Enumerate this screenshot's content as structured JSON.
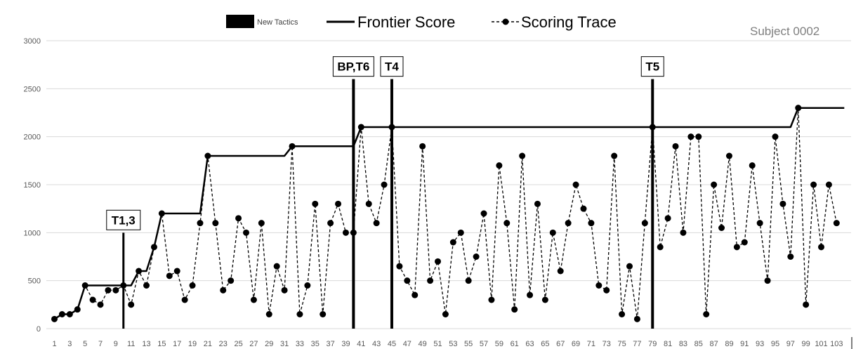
{
  "chart_data": {
    "type": "line",
    "subject_label": "Subject 0002",
    "legend": {
      "tactics_label": "New Tactics",
      "frontier_label": "Frontier Score",
      "trace_label": "Scoring Trace"
    },
    "ylim": [
      0,
      3000
    ],
    "yticks": [
      0,
      500,
      1000,
      1500,
      2000,
      2500,
      3000
    ],
    "xlim": [
      1,
      104
    ],
    "xticks": [
      1,
      3,
      5,
      7,
      9,
      11,
      13,
      15,
      17,
      19,
      21,
      23,
      25,
      27,
      29,
      31,
      33,
      35,
      37,
      39,
      41,
      43,
      45,
      47,
      49,
      51,
      53,
      55,
      57,
      59,
      61,
      63,
      65,
      67,
      69,
      71,
      73,
      75,
      77,
      79,
      81,
      83,
      85,
      87,
      89,
      91,
      93,
      95,
      97,
      99,
      101,
      103
    ],
    "tactics": [
      {
        "label": "T1,3",
        "x": 10,
        "top": 1000
      },
      {
        "label": "BP,T6",
        "x": 40,
        "top": 2600
      },
      {
        "label": "T4",
        "x": 45,
        "top": 2600
      },
      {
        "label": "T5",
        "x": 79,
        "top": 2600
      }
    ],
    "series": [
      {
        "name": "Scoring Trace",
        "x": [
          1,
          2,
          3,
          4,
          5,
          6,
          7,
          8,
          9,
          10,
          11,
          12,
          13,
          14,
          15,
          16,
          17,
          18,
          19,
          20,
          21,
          22,
          23,
          24,
          25,
          26,
          27,
          28,
          29,
          30,
          31,
          32,
          33,
          34,
          35,
          36,
          37,
          38,
          39,
          40,
          41,
          42,
          43,
          44,
          45,
          46,
          47,
          48,
          49,
          50,
          51,
          52,
          53,
          54,
          55,
          56,
          57,
          58,
          59,
          60,
          61,
          62,
          63,
          64,
          65,
          66,
          67,
          68,
          69,
          70,
          71,
          72,
          73,
          74,
          75,
          76,
          77,
          78,
          79,
          80,
          81,
          82,
          83,
          84,
          85,
          86,
          87,
          88,
          89,
          90,
          91,
          92,
          93,
          94,
          95,
          96,
          97,
          98,
          99,
          100,
          101,
          102,
          103,
          104
        ],
        "values": [
          100,
          150,
          150,
          200,
          450,
          300,
          250,
          400,
          400,
          450,
          250,
          600,
          450,
          850,
          1200,
          550,
          600,
          300,
          450,
          1100,
          1800,
          1100,
          400,
          500,
          1150,
          1000,
          300,
          1100,
          150,
          650,
          400,
          1900,
          150,
          450,
          1300,
          150,
          1100,
          1300,
          1000,
          1000,
          2100,
          1300,
          1100,
          1500,
          2100,
          650,
          500,
          350,
          1900,
          500,
          700,
          150,
          900,
          1000,
          500,
          750,
          1200,
          300,
          1700,
          1100,
          200,
          1800,
          350,
          1300,
          300,
          1000,
          600,
          1100,
          1500,
          1250,
          1100,
          450,
          400,
          1800,
          150,
          650,
          100,
          1100,
          2100,
          850,
          1150,
          1900,
          1000,
          2000,
          2000,
          150,
          1500,
          1050,
          1800,
          850,
          900,
          1700,
          1100,
          500,
          2000,
          1300,
          750,
          2300,
          250,
          1500,
          850,
          1500,
          1100,
          null
        ]
      },
      {
        "name": "Frontier Score",
        "x": [
          1,
          2,
          3,
          4,
          5,
          6,
          7,
          8,
          9,
          10,
          11,
          12,
          13,
          14,
          15,
          16,
          17,
          18,
          19,
          20,
          21,
          22,
          23,
          24,
          25,
          26,
          27,
          28,
          29,
          30,
          31,
          32,
          33,
          34,
          35,
          36,
          37,
          38,
          39,
          40,
          41,
          42,
          43,
          44,
          45,
          46,
          47,
          48,
          49,
          50,
          51,
          52,
          53,
          54,
          55,
          56,
          57,
          58,
          59,
          60,
          61,
          62,
          63,
          64,
          65,
          66,
          67,
          68,
          69,
          70,
          71,
          72,
          73,
          74,
          75,
          76,
          77,
          78,
          79,
          80,
          81,
          82,
          83,
          84,
          85,
          86,
          87,
          88,
          89,
          90,
          91,
          92,
          93,
          94,
          95,
          96,
          97,
          98,
          99,
          100,
          101,
          102,
          103,
          104
        ],
        "values": [
          100,
          150,
          150,
          200,
          450,
          450,
          450,
          450,
          450,
          450,
          450,
          600,
          600,
          850,
          1200,
          1200,
          1200,
          1200,
          1200,
          1200,
          1800,
          1800,
          1800,
          1800,
          1800,
          1800,
          1800,
          1800,
          1800,
          1800,
          1800,
          1900,
          1900,
          1900,
          1900,
          1900,
          1900,
          1900,
          1900,
          1900,
          2100,
          2100,
          2100,
          2100,
          2100,
          2100,
          2100,
          2100,
          2100,
          2100,
          2100,
          2100,
          2100,
          2100,
          2100,
          2100,
          2100,
          2100,
          2100,
          2100,
          2100,
          2100,
          2100,
          2100,
          2100,
          2100,
          2100,
          2100,
          2100,
          2100,
          2100,
          2100,
          2100,
          2100,
          2100,
          2100,
          2100,
          2100,
          2100,
          2100,
          2100,
          2100,
          2100,
          2100,
          2100,
          2100,
          2100,
          2100,
          2100,
          2100,
          2100,
          2100,
          2100,
          2100,
          2100,
          2100,
          2100,
          2300,
          2300,
          2300,
          2300,
          2300,
          2300,
          2300
        ]
      }
    ]
  }
}
